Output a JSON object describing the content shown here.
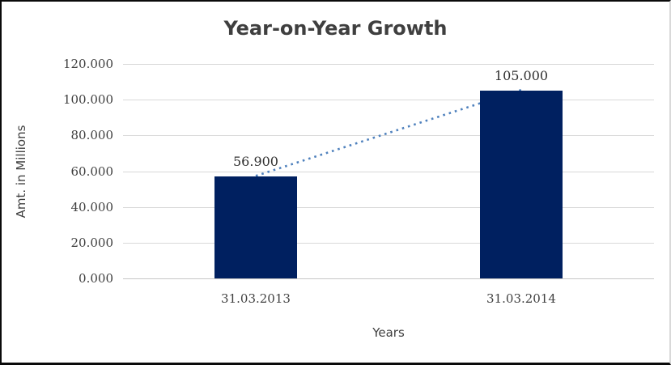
{
  "chart_data": {
    "type": "bar",
    "title": "Year-on-Year Growth",
    "xlabel": "Years",
    "ylabel": "Amt. in Millions",
    "categories": [
      "31.03.2013",
      "31.03.2014"
    ],
    "values": [
      56.9,
      105.0
    ],
    "data_labels": [
      "56.900",
      "105.000"
    ],
    "ylim": [
      0,
      120
    ],
    "ytick_values": [
      0,
      20,
      40,
      60,
      80,
      100,
      120
    ],
    "ytick_labels": [
      "0.000",
      "20.000",
      "40.000",
      "60.000",
      "80.000",
      "100.000",
      "120.000"
    ],
    "grid": true,
    "legend_position": "none",
    "bar_color": "#002060",
    "trendline": {
      "style": "dotted",
      "color": "#4f81bd",
      "connects": "bar tops (31.03.2013 -> 31.03.2014)"
    }
  }
}
